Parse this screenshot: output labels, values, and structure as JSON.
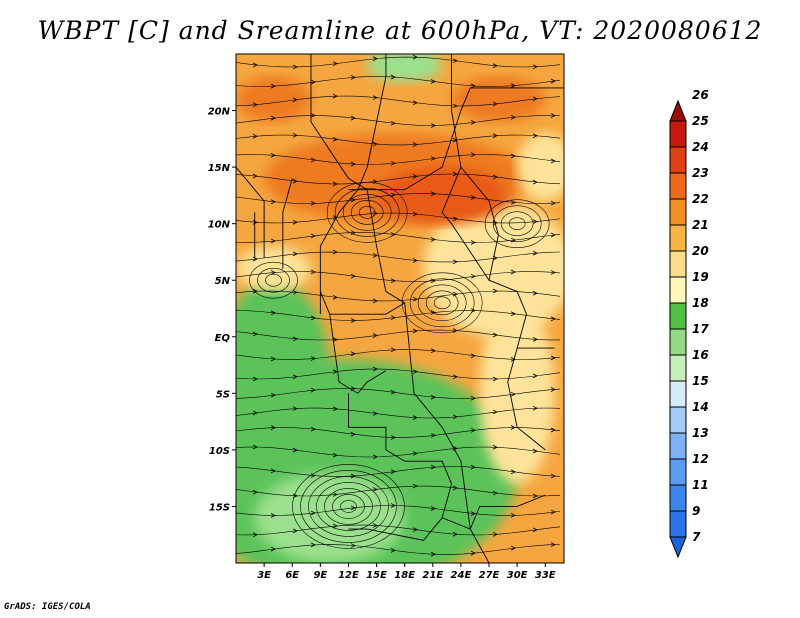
{
  "figure": {
    "title": "WBPT [C] and Sreamline at 600hPa, VT: 2020080612",
    "credit": "GrADS: IGES/COLA"
  },
  "map": {
    "lon_range": [
      0,
      35
    ],
    "lat_range": [
      -20,
      25
    ],
    "lon_labels": [
      {
        "lon": 3,
        "text": "3E"
      },
      {
        "lon": 6,
        "text": "6E"
      },
      {
        "lon": 9,
        "text": "9E"
      },
      {
        "lon": 12,
        "text": "12E"
      },
      {
        "lon": 15,
        "text": "15E"
      },
      {
        "lon": 18,
        "text": "18E"
      },
      {
        "lon": 21,
        "text": "21E"
      },
      {
        "lon": 24,
        "text": "24E"
      },
      {
        "lon": 27,
        "text": "27E"
      },
      {
        "lon": 30,
        "text": "30E"
      },
      {
        "lon": 33,
        "text": "33E"
      }
    ],
    "lat_labels": [
      {
        "lat": 20,
        "text": "20N"
      },
      {
        "lat": 15,
        "text": "15N"
      },
      {
        "lat": 10,
        "text": "10N"
      },
      {
        "lat": 5,
        "text": "5N"
      },
      {
        "lat": 0,
        "text": "EQ"
      },
      {
        "lat": -5,
        "text": "5S"
      },
      {
        "lat": -10,
        "text": "10S"
      },
      {
        "lat": -15,
        "text": "15S"
      }
    ]
  },
  "colorbar": {
    "labels": [
      "7",
      "9",
      "11",
      "12",
      "13",
      "14",
      "15",
      "16",
      "17",
      "18",
      "19",
      "20",
      "21",
      "22",
      "23",
      "24",
      "25",
      "26"
    ],
    "colors": [
      "#1f63d8",
      "#2a74e6",
      "#3d86ee",
      "#5b9cf2",
      "#7db3f5",
      "#a3ccf8",
      "#d7ecf9",
      "#c6eebb",
      "#93db82",
      "#4fbf47",
      "#fff6b8",
      "#fbdd8c",
      "#f8b545",
      "#f48f25",
      "#ed6a1c",
      "#e13f14",
      "#c6180c",
      "#9a0b06"
    ]
  },
  "fields": {
    "wbpt_colors": {
      "green": "#5cc35a",
      "light_green": "#9be08c",
      "yellow": "#fde49a",
      "orange": "#f5a640",
      "dark_orange": "#ee7a20",
      "red_orange": "#e85a18"
    },
    "wbpt_blobs": [
      {
        "lon": 12,
        "lat": -12,
        "rx": 18,
        "ry": 10,
        "level": "green"
      },
      {
        "lon": 4,
        "lat": -3,
        "rx": 6,
        "ry": 8,
        "level": "green"
      },
      {
        "lon": 10,
        "lat": -16,
        "rx": 8,
        "ry": 4,
        "level": "light_green"
      },
      {
        "lon": 28,
        "lat": 6,
        "rx": 8,
        "ry": 6,
        "level": "yellow"
      },
      {
        "lon": 4,
        "lat": 6,
        "rx": 4,
        "ry": 2,
        "level": "yellow"
      },
      {
        "lon": 30,
        "lat": -5,
        "rx": 4,
        "ry": 8,
        "level": "yellow"
      },
      {
        "lon": 17,
        "lat": 14,
        "rx": 14,
        "ry": 4,
        "level": "dark_orange"
      },
      {
        "lon": 22,
        "lat": 12.5,
        "rx": 7,
        "ry": 2.5,
        "level": "red_orange"
      },
      {
        "lon": 4,
        "lat": 21,
        "rx": 4,
        "ry": 2,
        "level": "dark_orange"
      },
      {
        "lon": 28,
        "lat": 21,
        "rx": 5,
        "ry": 2,
        "level": "dark_orange"
      },
      {
        "lon": 18,
        "lat": 24,
        "rx": 4,
        "ry": 1.5,
        "level": "light_green"
      },
      {
        "lon": 33,
        "lat": 15,
        "rx": 3,
        "ry": 3,
        "level": "yellow"
      }
    ],
    "vortices": [
      {
        "lon": 12,
        "lat": -15,
        "rings": 7
      },
      {
        "lon": 14,
        "lat": 11,
        "rings": 5
      },
      {
        "lon": 30,
        "lat": 10,
        "rings": 4
      },
      {
        "lon": 22,
        "lat": 3,
        "rings": 5
      },
      {
        "lon": 4,
        "lat": 5,
        "rings": 3
      }
    ]
  }
}
